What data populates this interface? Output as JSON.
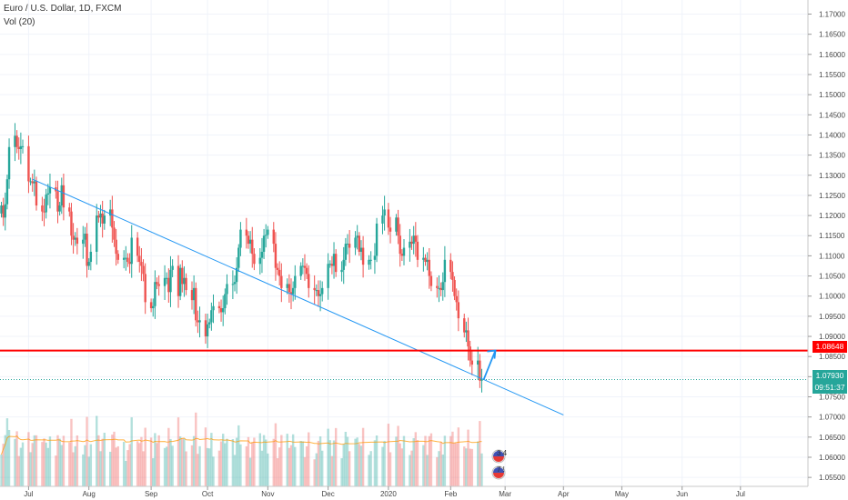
{
  "header": {
    "title": "Euro / U.S. Dollar, 1D, FXCM",
    "indicator": "Vol (20)"
  },
  "price_tags": {
    "level": "1.08648",
    "last": "1.07930",
    "countdown": "09:51:37"
  },
  "colors": {
    "up": "#26a69a",
    "down": "#ef5350",
    "level_line": "#ff0000",
    "trendline": "#2196f3",
    "last_price": "#26a69a"
  },
  "events": {
    "badge_top": "3 4",
    "badge_bottom": "7 !"
  },
  "chart_data": {
    "type": "candlestick",
    "title": "Euro / U.S. Dollar, 1D, FXCM",
    "y_ticks": [
      "1.17000",
      "1.16500",
      "1.16000",
      "1.15500",
      "1.15000",
      "1.14500",
      "1.14000",
      "1.13500",
      "1.13000",
      "1.12500",
      "1.12000",
      "1.11500",
      "1.11000",
      "1.10500",
      "1.10000",
      "1.09500",
      "1.09000",
      "1.08500",
      "1.08000",
      "1.07500",
      "1.07000",
      "1.06500",
      "1.06000",
      "1.05500"
    ],
    "ylim": [
      1.053,
      1.1735
    ],
    "x_ticks": [
      "Jul",
      "Aug",
      "Sep",
      "Oct",
      "Nov",
      "Dec",
      "2020",
      "Feb",
      "Mar",
      "Apr",
      "May",
      "Jun",
      "Jul"
    ],
    "horizontal_level": 1.08648,
    "last_price": 1.0793,
    "trendline": {
      "from": {
        "date": "2019-07-03",
        "price": 1.129
      },
      "to": {
        "date": "2020-04-01",
        "price": 1.0705
      }
    },
    "arrow": {
      "from": {
        "date": "2020-02-20",
        "price": 1.0793
      },
      "to": {
        "date": "2020-02-26",
        "price": 1.0865
      }
    },
    "volume_sma_period": 20,
    "closes": [
      {
        "date": "2019-06-17",
        "close": 1.1225
      },
      {
        "date": "2019-06-18",
        "close": 1.1195
      },
      {
        "date": "2019-06-19",
        "close": 1.1228
      },
      {
        "date": "2019-06-20",
        "close": 1.129
      },
      {
        "date": "2019-06-21",
        "close": 1.137
      },
      {
        "date": "2019-06-24",
        "close": 1.1398
      },
      {
        "date": "2019-06-25",
        "close": 1.137
      },
      {
        "date": "2019-06-26",
        "close": 1.1365
      },
      {
        "date": "2019-06-27",
        "close": 1.1372
      },
      {
        "date": "2019-06-28",
        "close": 1.1372
      },
      {
        "date": "2019-07-01",
        "close": 1.1285
      },
      {
        "date": "2019-07-02",
        "close": 1.1285
      },
      {
        "date": "2019-07-03",
        "close": 1.128
      },
      {
        "date": "2019-07-04",
        "close": 1.1285
      },
      {
        "date": "2019-07-05",
        "close": 1.1225
      },
      {
        "date": "2019-07-08",
        "close": 1.121
      },
      {
        "date": "2019-07-09",
        "close": 1.1208
      },
      {
        "date": "2019-07-10",
        "close": 1.1252
      },
      {
        "date": "2019-07-11",
        "close": 1.1255
      },
      {
        "date": "2019-07-12",
        "close": 1.127
      },
      {
        "date": "2019-07-15",
        "close": 1.126
      },
      {
        "date": "2019-07-16",
        "close": 1.121
      },
      {
        "date": "2019-07-17",
        "close": 1.1225
      },
      {
        "date": "2019-07-18",
        "close": 1.1275
      },
      {
        "date": "2019-07-19",
        "close": 1.122
      },
      {
        "date": "2019-07-22",
        "close": 1.121
      },
      {
        "date": "2019-07-23",
        "close": 1.115
      },
      {
        "date": "2019-07-24",
        "close": 1.114
      },
      {
        "date": "2019-07-25",
        "close": 1.1145
      },
      {
        "date": "2019-07-26",
        "close": 1.113
      },
      {
        "date": "2019-07-29",
        "close": 1.114
      },
      {
        "date": "2019-07-30",
        "close": 1.1155
      },
      {
        "date": "2019-07-31",
        "close": 1.1075
      },
      {
        "date": "2019-08-01",
        "close": 1.1085
      },
      {
        "date": "2019-08-02",
        "close": 1.111
      },
      {
        "date": "2019-08-05",
        "close": 1.12
      },
      {
        "date": "2019-08-06",
        "close": 1.1195
      },
      {
        "date": "2019-08-07",
        "close": 1.1205
      },
      {
        "date": "2019-08-08",
        "close": 1.118
      },
      {
        "date": "2019-08-09",
        "close": 1.12
      },
      {
        "date": "2019-08-12",
        "close": 1.1215
      },
      {
        "date": "2019-08-13",
        "close": 1.117
      },
      {
        "date": "2019-08-14",
        "close": 1.114
      },
      {
        "date": "2019-08-15",
        "close": 1.1105
      },
      {
        "date": "2019-08-16",
        "close": 1.109
      },
      {
        "date": "2019-08-19",
        "close": 1.1095
      },
      {
        "date": "2019-08-20",
        "close": 1.1095
      },
      {
        "date": "2019-08-21",
        "close": 1.1085
      },
      {
        "date": "2019-08-22",
        "close": 1.108
      },
      {
        "date": "2019-08-23",
        "close": 1.1145
      },
      {
        "date": "2019-08-26",
        "close": 1.11
      },
      {
        "date": "2019-08-27",
        "close": 1.1085
      },
      {
        "date": "2019-08-28",
        "close": 1.1075
      },
      {
        "date": "2019-08-29",
        "close": 1.1055
      },
      {
        "date": "2019-08-30",
        "close": 1.0985
      },
      {
        "date": "2019-09-02",
        "close": 1.097
      },
      {
        "date": "2019-09-03",
        "close": 1.0975
      },
      {
        "date": "2019-09-04",
        "close": 1.1035
      },
      {
        "date": "2019-09-05",
        "close": 1.103
      },
      {
        "date": "2019-09-06",
        "close": 1.1025
      },
      {
        "date": "2019-09-09",
        "close": 1.1045
      },
      {
        "date": "2019-09-10",
        "close": 1.1045
      },
      {
        "date": "2019-09-11",
        "close": 1.101
      },
      {
        "date": "2019-09-12",
        "close": 1.1065
      },
      {
        "date": "2019-09-13",
        "close": 1.1075
      },
      {
        "date": "2019-09-16",
        "close": 1.1
      },
      {
        "date": "2019-09-17",
        "close": 1.107
      },
      {
        "date": "2019-09-18",
        "close": 1.103
      },
      {
        "date": "2019-09-19",
        "close": 1.1045
      },
      {
        "date": "2019-09-20",
        "close": 1.1015
      },
      {
        "date": "2019-09-23",
        "close": 1.099
      },
      {
        "date": "2019-09-24",
        "close": 1.102
      },
      {
        "date": "2019-09-25",
        "close": 1.094
      },
      {
        "date": "2019-09-26",
        "close": 1.0935
      },
      {
        "date": "2019-09-27",
        "close": 1.094
      },
      {
        "date": "2019-09-30",
        "close": 1.09
      },
      {
        "date": "2019-10-01",
        "close": 1.093
      },
      {
        "date": "2019-10-02",
        "close": 1.0935
      },
      {
        "date": "2019-10-03",
        "close": 1.0965
      },
      {
        "date": "2019-10-04",
        "close": 1.0975
      },
      {
        "date": "2019-10-07",
        "close": 1.097
      },
      {
        "date": "2019-10-08",
        "close": 1.096
      },
      {
        "date": "2019-10-09",
        "close": 1.097
      },
      {
        "date": "2019-10-10",
        "close": 1.1005
      },
      {
        "date": "2019-10-11",
        "close": 1.103
      },
      {
        "date": "2019-10-14",
        "close": 1.103
      },
      {
        "date": "2019-10-15",
        "close": 1.1035
      },
      {
        "date": "2019-10-16",
        "close": 1.107
      },
      {
        "date": "2019-10-17",
        "close": 1.112
      },
      {
        "date": "2019-10-18",
        "close": 1.1165
      },
      {
        "date": "2019-10-21",
        "close": 1.115
      },
      {
        "date": "2019-10-22",
        "close": 1.113
      },
      {
        "date": "2019-10-23",
        "close": 1.114
      },
      {
        "date": "2019-10-24",
        "close": 1.1105
      },
      {
        "date": "2019-10-25",
        "close": 1.108
      },
      {
        "date": "2019-10-28",
        "close": 1.1095
      },
      {
        "date": "2019-10-29",
        "close": 1.111
      },
      {
        "date": "2019-10-30",
        "close": 1.115
      },
      {
        "date": "2019-10-31",
        "close": 1.1152
      },
      {
        "date": "2019-11-01",
        "close": 1.1165
      },
      {
        "date": "2019-11-04",
        "close": 1.113
      },
      {
        "date": "2019-11-05",
        "close": 1.107
      },
      {
        "date": "2019-11-06",
        "close": 1.1065
      },
      {
        "date": "2019-11-07",
        "close": 1.105
      },
      {
        "date": "2019-11-08",
        "close": 1.102
      },
      {
        "date": "2019-11-11",
        "close": 1.103
      },
      {
        "date": "2019-11-12",
        "close": 1.101
      },
      {
        "date": "2019-11-13",
        "close": 1.1005
      },
      {
        "date": "2019-11-14",
        "close": 1.102
      },
      {
        "date": "2019-11-15",
        "close": 1.105
      },
      {
        "date": "2019-11-18",
        "close": 1.1075
      },
      {
        "date": "2019-11-19",
        "close": 1.1075
      },
      {
        "date": "2019-11-20",
        "close": 1.107
      },
      {
        "date": "2019-11-21",
        "close": 1.1055
      },
      {
        "date": "2019-11-22",
        "close": 1.102
      },
      {
        "date": "2019-11-25",
        "close": 1.1015
      },
      {
        "date": "2019-11-26",
        "close": 1.1015
      },
      {
        "date": "2019-11-27",
        "close": 1.1
      },
      {
        "date": "2019-11-28",
        "close": 1.1005
      },
      {
        "date": "2019-11-29",
        "close": 1.102
      },
      {
        "date": "2019-12-02",
        "close": 1.108
      },
      {
        "date": "2019-12-03",
        "close": 1.108
      },
      {
        "date": "2019-12-04",
        "close": 1.1075
      },
      {
        "date": "2019-12-05",
        "close": 1.1105
      },
      {
        "date": "2019-12-06",
        "close": 1.106
      },
      {
        "date": "2019-12-09",
        "close": 1.1065
      },
      {
        "date": "2019-12-10",
        "close": 1.109
      },
      {
        "date": "2019-12-11",
        "close": 1.113
      },
      {
        "date": "2019-12-12",
        "close": 1.113
      },
      {
        "date": "2019-12-13",
        "close": 1.112
      },
      {
        "date": "2019-12-16",
        "close": 1.1145
      },
      {
        "date": "2019-12-17",
        "close": 1.115
      },
      {
        "date": "2019-12-18",
        "close": 1.111
      },
      {
        "date": "2019-12-19",
        "close": 1.112
      },
      {
        "date": "2019-12-20",
        "close": 1.1078
      },
      {
        "date": "2019-12-23",
        "close": 1.109
      },
      {
        "date": "2019-12-24",
        "close": 1.109
      },
      {
        "date": "2019-12-26",
        "close": 1.11
      },
      {
        "date": "2019-12-27",
        "close": 1.118
      },
      {
        "date": "2019-12-30",
        "close": 1.12
      },
      {
        "date": "2019-12-31",
        "close": 1.1215
      },
      {
        "date": "2020-01-02",
        "close": 1.117
      },
      {
        "date": "2020-01-03",
        "close": 1.116
      },
      {
        "date": "2020-01-06",
        "close": 1.1195
      },
      {
        "date": "2020-01-07",
        "close": 1.115
      },
      {
        "date": "2020-01-08",
        "close": 1.1105
      },
      {
        "date": "2020-01-09",
        "close": 1.11
      },
      {
        "date": "2020-01-10",
        "close": 1.112
      },
      {
        "date": "2020-01-13",
        "close": 1.1135
      },
      {
        "date": "2020-01-14",
        "close": 1.113
      },
      {
        "date": "2020-01-15",
        "close": 1.115
      },
      {
        "date": "2020-01-16",
        "close": 1.1135
      },
      {
        "date": "2020-01-17",
        "close": 1.109
      },
      {
        "date": "2020-01-20",
        "close": 1.1095
      },
      {
        "date": "2020-01-21",
        "close": 1.1085
      },
      {
        "date": "2020-01-22",
        "close": 1.109
      },
      {
        "date": "2020-01-23",
        "close": 1.105
      },
      {
        "date": "2020-01-24",
        "close": 1.1025
      },
      {
        "date": "2020-01-27",
        "close": 1.102
      },
      {
        "date": "2020-01-28",
        "close": 1.102
      },
      {
        "date": "2020-01-29",
        "close": 1.1015
      },
      {
        "date": "2020-01-30",
        "close": 1.1035
      },
      {
        "date": "2020-01-31",
        "close": 1.109
      },
      {
        "date": "2020-02-03",
        "close": 1.106
      },
      {
        "date": "2020-02-04",
        "close": 1.104
      },
      {
        "date": "2020-02-05",
        "close": 1.1
      },
      {
        "date": "2020-02-06",
        "close": 1.0985
      },
      {
        "date": "2020-02-07",
        "close": 1.0945
      },
      {
        "date": "2020-02-10",
        "close": 1.091
      },
      {
        "date": "2020-02-11",
        "close": 1.0915
      },
      {
        "date": "2020-02-12",
        "close": 1.0875
      },
      {
        "date": "2020-02-13",
        "close": 1.084
      },
      {
        "date": "2020-02-14",
        "close": 1.083
      },
      {
        "date": "2020-02-17",
        "close": 1.084
      },
      {
        "date": "2020-02-18",
        "close": 1.079
      },
      {
        "date": "2020-02-19",
        "close": 1.0793
      }
    ]
  }
}
